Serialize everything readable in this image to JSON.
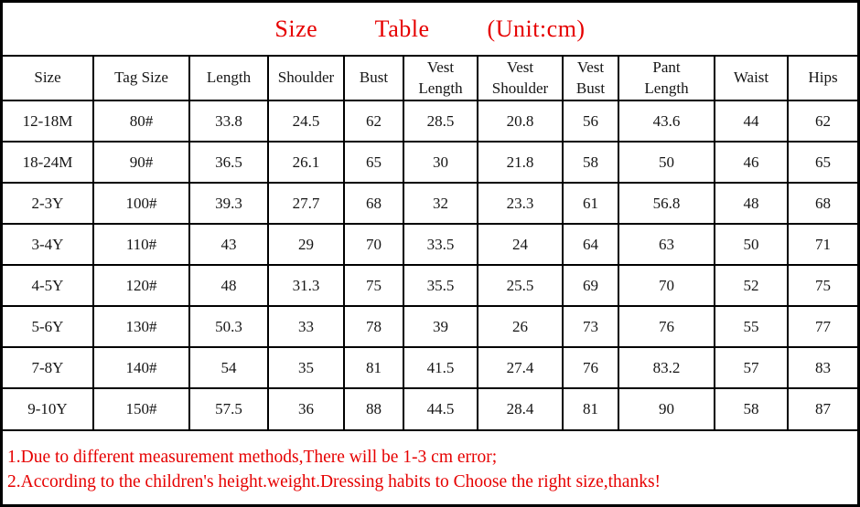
{
  "title": {
    "text": "Size         Table         (Unit:cm)"
  },
  "colors": {
    "title_red": "#e60000",
    "border_black": "#000000",
    "text_black": "#151515",
    "background": "#ffffff"
  },
  "table": {
    "columns": [
      "Size",
      "Tag Size",
      "Length",
      "Shoulder",
      "Bust",
      "Vest\nLength",
      "Vest\nShoulder",
      "Vest\nBust",
      "Pant\nLength",
      "Waist",
      "Hips"
    ],
    "rows": [
      [
        "12-18M",
        "80#",
        "33.8",
        "24.5",
        "62",
        "28.5",
        "20.8",
        "56",
        "43.6",
        "44",
        "62"
      ],
      [
        "18-24M",
        "90#",
        "36.5",
        "26.1",
        "65",
        "30",
        "21.8",
        "58",
        "50",
        "46",
        "65"
      ],
      [
        "2-3Y",
        "100#",
        "39.3",
        "27.7",
        "68",
        "32",
        "23.3",
        "61",
        "56.8",
        "48",
        "68"
      ],
      [
        "3-4Y",
        "110#",
        "43",
        "29",
        "70",
        "33.5",
        "24",
        "64",
        "63",
        "50",
        "71"
      ],
      [
        "4-5Y",
        "120#",
        "48",
        "31.3",
        "75",
        "35.5",
        "25.5",
        "69",
        "70",
        "52",
        "75"
      ],
      [
        "5-6Y",
        "130#",
        "50.3",
        "33",
        "78",
        "39",
        "26",
        "73",
        "76",
        "55",
        "77"
      ],
      [
        "7-8Y",
        "140#",
        "54",
        "35",
        "81",
        "41.5",
        "27.4",
        "76",
        "83.2",
        "57",
        "83"
      ],
      [
        "9-10Y",
        "150#",
        "57.5",
        "36",
        "88",
        "44.5",
        "28.4",
        "81",
        "90",
        "58",
        "87"
      ]
    ]
  },
  "notes": [
    "1.Due to different measurement methods,There will be 1-3 cm error;",
    "2.According to the children's height.weight.Dressing habits to Choose the right size,thanks!"
  ]
}
